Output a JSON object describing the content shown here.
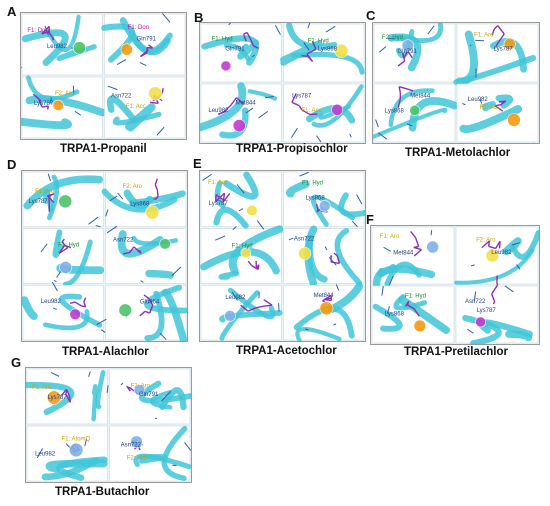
{
  "panels": [
    {
      "letter": "A",
      "caption": "TRPA1-Propanil",
      "labels": [
        "F1: Don",
        "F1: Don",
        "F2: Aro",
        "Asn722",
        "Leu982",
        "Gln791",
        "Lys787",
        "F1: Acc"
      ]
    },
    {
      "letter": "B",
      "caption": "TRPA1-Propisochlor",
      "labels": [
        "F1: Hyd",
        "F1: Hyd",
        "Met844",
        "Lys787",
        "Gln791",
        "Lys868",
        "Leu982",
        "F1: Acc"
      ]
    },
    {
      "letter": "C",
      "caption": "TRPA1-Metolachlor",
      "labels": [
        "F2: Hyd",
        "F1: Aro",
        "Met844",
        "Leu982",
        "Gln791",
        "Lys787",
        "Lys868",
        "F1: Acc"
      ]
    },
    {
      "letter": "D",
      "caption": "TRPA1-Alachlor",
      "labels": [
        "F1: Aro",
        "F2: Aro",
        "F1: Hyd",
        "Asn722",
        "Leu982",
        "Glu864",
        "Lys787",
        "Lys868"
      ]
    },
    {
      "letter": "E",
      "caption": "TRPA1-Acetochlor",
      "labels": [
        "F1: Aro",
        "F1: Hyd",
        "F1: Hyd",
        "Asn722",
        "Leu982",
        "Met844",
        "Lys787",
        "Lys868"
      ]
    },
    {
      "letter": "F",
      "caption": "TRPA1-Pretilachlor",
      "labels": [
        "F1: Aro",
        "F2: Aro",
        "F1: Hyd",
        "Asn722",
        "Met844",
        "Leu982",
        "Lys868",
        "Lys787"
      ]
    },
    {
      "letter": "G",
      "caption": "TRPA1-Butachlor",
      "labels": [
        "F1: Aro",
        "F2: Aro",
        "F1: AtomQ",
        "Asn722",
        "Lys787",
        "Gln791",
        "Leu982",
        "F2: Acc"
      ]
    }
  ]
}
